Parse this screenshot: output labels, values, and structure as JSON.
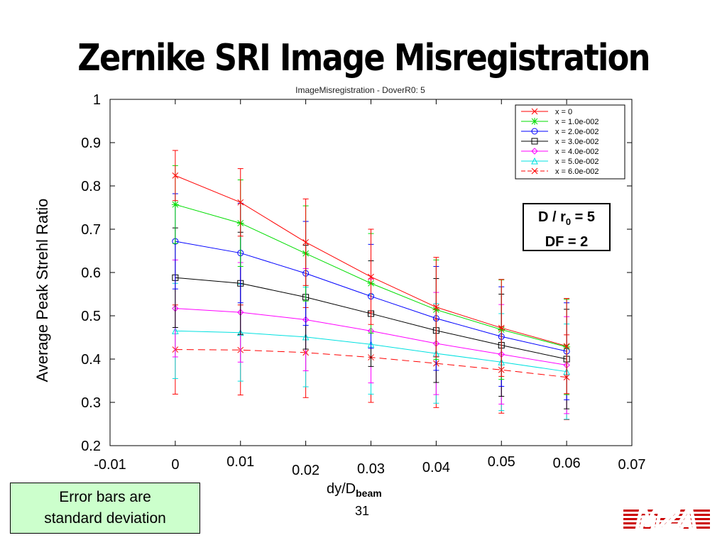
{
  "slide": {
    "title": "Zernike SRI Image Misregistration",
    "page_number": "31"
  },
  "params_box": {
    "line1_pre": "D / r",
    "line1_sub": "0",
    "line1_post": " = 5",
    "line2": "DF = 2"
  },
  "note": {
    "line1": "Error bars are",
    "line2": "standard deviation"
  },
  "logo_text": "MZA",
  "colors": {
    "series": [
      "#ff0000",
      "#00dd00",
      "#0000ff",
      "#000000",
      "#ff00ff",
      "#00e0e0",
      "#ff0000"
    ],
    "note_bg": "#ccffcc"
  },
  "chart_data": {
    "type": "line",
    "title": "ImageMisregistration - DoverR0: 5",
    "xlabel_main": "dy/D",
    "xlabel_sub": "beam",
    "ylabel": "Average Peak Strehl Ratio",
    "xlim": [
      -0.01,
      0.07
    ],
    "ylim": [
      0.2,
      1
    ],
    "x_ticks": [
      "-0.01",
      "0",
      "0.01",
      "0.02",
      "0.03",
      "0.04",
      "0.05",
      "0.06",
      "0.07"
    ],
    "y_ticks": [
      "0.2",
      "0.3",
      "0.4",
      "0.5",
      "0.6",
      "0.7",
      "0.8",
      "0.9",
      "1"
    ],
    "x": [
      0,
      0.01,
      0.02,
      0.03,
      0.04,
      0.05,
      0.06
    ],
    "legend_position": "top-right",
    "series": [
      {
        "name": "x = 0",
        "marker": "x",
        "values": [
          0.824,
          0.762,
          0.67,
          0.59,
          0.52,
          0.472,
          0.43
        ],
        "std": [
          0.058,
          0.078,
          0.1,
          0.11,
          0.115,
          0.112,
          0.11
        ]
      },
      {
        "name": "x = 1.0e-002",
        "marker": "star",
        "values": [
          0.757,
          0.714,
          0.644,
          0.575,
          0.514,
          0.468,
          0.428
        ],
        "std": [
          0.09,
          0.1,
          0.11,
          0.115,
          0.115,
          0.115,
          0.11
        ]
      },
      {
        "name": "x = 2.0e-002",
        "marker": "circle",
        "values": [
          0.672,
          0.645,
          0.598,
          0.545,
          0.494,
          0.452,
          0.418
        ],
        "std": [
          0.11,
          0.115,
          0.12,
          0.12,
          0.12,
          0.115,
          0.112
        ]
      },
      {
        "name": "x = 3.0e-002",
        "marker": "square",
        "values": [
          0.588,
          0.575,
          0.543,
          0.505,
          0.466,
          0.432,
          0.4
        ],
        "std": [
          0.115,
          0.118,
          0.12,
          0.122,
          0.12,
          0.118,
          0.115
        ]
      },
      {
        "name": "x = 4.0e-002",
        "marker": "diamond",
        "values": [
          0.517,
          0.508,
          0.491,
          0.465,
          0.436,
          0.411,
          0.386
        ],
        "std": [
          0.112,
          0.115,
          0.118,
          0.12,
          0.118,
          0.115,
          0.112
        ]
      },
      {
        "name": "x = 5.0e-002",
        "marker": "triangle",
        "values": [
          0.465,
          0.461,
          0.451,
          0.434,
          0.413,
          0.393,
          0.371
        ],
        "std": [
          0.11,
          0.112,
          0.115,
          0.115,
          0.115,
          0.112,
          0.11
        ]
      },
      {
        "name": "x = 6.0e-002",
        "marker": "x",
        "dashed": true,
        "values": [
          0.422,
          0.421,
          0.415,
          0.404,
          0.39,
          0.375,
          0.358
        ],
        "std": [
          0.103,
          0.104,
          0.104,
          0.104,
          0.102,
          0.1,
          0.098
        ]
      }
    ]
  }
}
